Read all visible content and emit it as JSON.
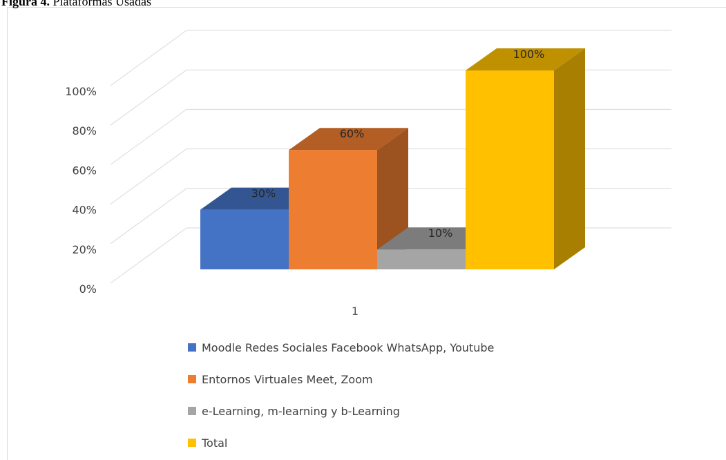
{
  "figure_label": "Figura 4.",
  "chart_data": {
    "type": "bar3d",
    "title": "Plataformas Usadas",
    "categories": [
      "1"
    ],
    "series": [
      {
        "name": "Moodle Redes Sociales Facebook WhatsApp, Youtube",
        "color": "#4472c4",
        "values": [
          30
        ],
        "value_labels": [
          "30%"
        ]
      },
      {
        "name": "Entornos Virtuales Meet, Zoom",
        "color": "#ed7d31",
        "values": [
          60
        ],
        "value_labels": [
          "60%"
        ]
      },
      {
        "name": "e-Learning, m-learning y b-Learning",
        "color": "#a5a5a5",
        "values": [
          10
        ],
        "value_labels": [
          "10%"
        ]
      },
      {
        "name": "Total",
        "color": "#ffc000",
        "values": [
          100
        ],
        "value_labels": [
          "100%"
        ]
      }
    ],
    "ylim": [
      0,
      100
    ],
    "yticks": [
      {
        "value": 0,
        "label": "0%"
      },
      {
        "value": 20,
        "label": "20%"
      },
      {
        "value": 40,
        "label": "40%"
      },
      {
        "value": 60,
        "label": "60%"
      },
      {
        "value": 80,
        "label": "80%"
      },
      {
        "value": 100,
        "label": "100%"
      }
    ],
    "grid": true,
    "legend": "bottom"
  }
}
